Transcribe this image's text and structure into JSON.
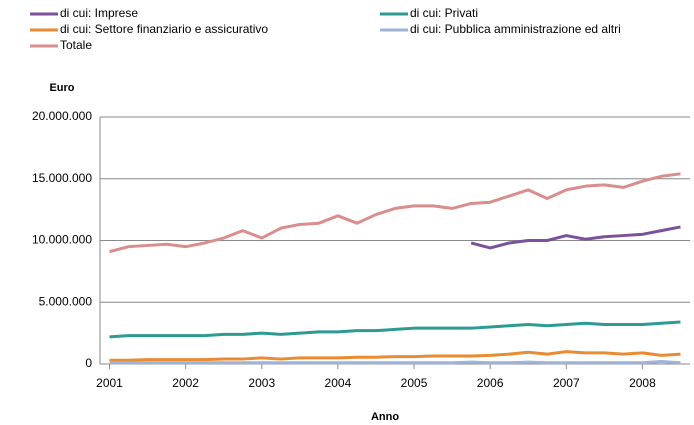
{
  "chart_data": {
    "type": "line",
    "y_label": "Euro",
    "x_label": "Anno",
    "x": [
      2001,
      2001.25,
      2001.5,
      2001.75,
      2002,
      2002.25,
      2002.5,
      2002.75,
      2003,
      2003.25,
      2003.5,
      2003.75,
      2004,
      2004.25,
      2004.5,
      2004.75,
      2005,
      2005.25,
      2005.5,
      2005.75,
      2006,
      2006.25,
      2006.5,
      2006.75,
      2007,
      2007.25,
      2007.5,
      2007.75,
      2008,
      2008.25,
      2008.5
    ],
    "xlim": [
      2000.875,
      2008.625
    ],
    "xticks": [
      2001,
      2002,
      2003,
      2004,
      2005,
      2006,
      2007,
      2008
    ],
    "ylim": [
      0,
      20000000
    ],
    "yticks": [
      0,
      {
        "value": 5000000,
        "label": "5.000.000"
      },
      {
        "value": 10000000,
        "label": "10.000.000"
      },
      {
        "value": 15000000,
        "label": "15.000.000"
      },
      {
        "value": 20000000,
        "label": "20.000.000"
      }
    ],
    "grid": true,
    "series": [
      {
        "name": "di cui: Imprese",
        "color": "#7b519c",
        "values": [
          null,
          null,
          null,
          null,
          null,
          null,
          null,
          null,
          null,
          null,
          null,
          null,
          null,
          null,
          null,
          null,
          null,
          null,
          null,
          9800000,
          9400000,
          9800000,
          10000000,
          10000000,
          10400000,
          10100000,
          10300000,
          10400000,
          10500000,
          10800000,
          11100000
        ]
      },
      {
        "name": "di cui: Privati",
        "color": "#2d9a94",
        "values": [
          2200000,
          2300000,
          2300000,
          2300000,
          2300000,
          2300000,
          2400000,
          2400000,
          2500000,
          2400000,
          2500000,
          2600000,
          2600000,
          2700000,
          2700000,
          2800000,
          2900000,
          2900000,
          2900000,
          2900000,
          3000000,
          3100000,
          3200000,
          3100000,
          3200000,
          3300000,
          3200000,
          3200000,
          3200000,
          3300000,
          3400000
        ]
      },
      {
        "name": "di cui: Settore finanziario e assicurativo",
        "color": "#e98b33",
        "values": [
          300000,
          300000,
          350000,
          350000,
          350000,
          350000,
          400000,
          400000,
          500000,
          400000,
          500000,
          500000,
          500000,
          550000,
          550000,
          600000,
          600000,
          650000,
          650000,
          650000,
          700000,
          800000,
          950000,
          800000,
          1000000,
          900000,
          900000,
          800000,
          900000,
          700000,
          800000
        ]
      },
      {
        "name": "di cui: Pubblica amministrazione ed altri",
        "color": "#9db3d8",
        "values": [
          100000,
          100000,
          100000,
          100000,
          100000,
          100000,
          100000,
          100000,
          100000,
          100000,
          100000,
          100000,
          100000,
          100000,
          100000,
          100000,
          100000,
          100000,
          100000,
          150000,
          100000,
          100000,
          150000,
          100000,
          100000,
          100000,
          100000,
          100000,
          100000,
          200000,
          100000
        ]
      },
      {
        "name": "Totale",
        "color": "#d98d8c",
        "values": [
          9100000,
          9500000,
          9600000,
          9700000,
          9500000,
          9800000,
          10200000,
          10800000,
          10200000,
          11000000,
          11300000,
          11400000,
          12000000,
          11400000,
          12100000,
          12600000,
          12800000,
          12800000,
          12600000,
          13000000,
          13100000,
          13600000,
          14100000,
          13400000,
          14100000,
          14400000,
          14500000,
          14300000,
          14800000,
          15200000,
          15400000
        ]
      }
    ]
  }
}
